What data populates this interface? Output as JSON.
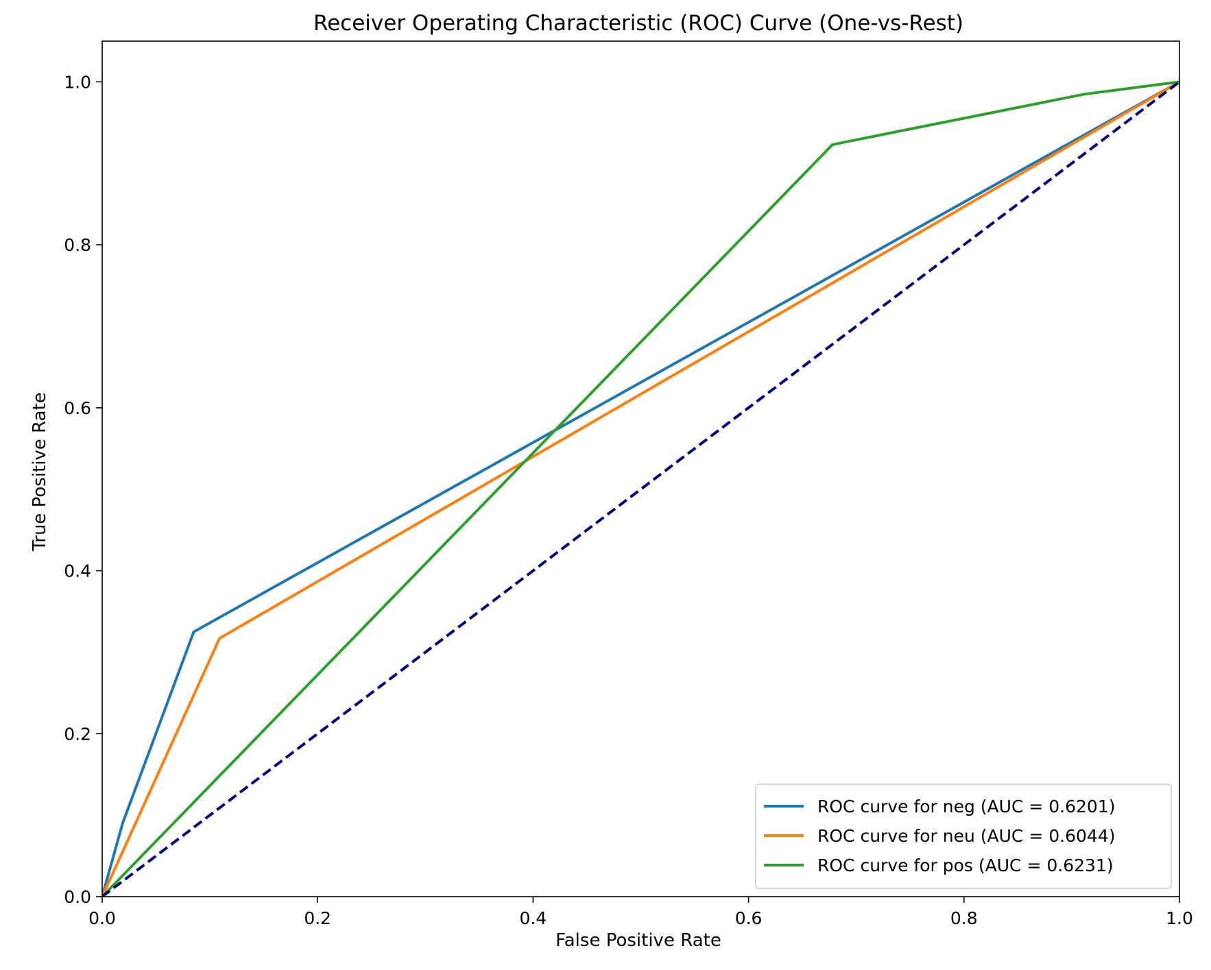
{
  "chart_data": {
    "type": "line",
    "title": "Receiver Operating Characteristic (ROC) Curve (One-vs-Rest)",
    "xlabel": "False Positive Rate",
    "ylabel": "True Positive Rate",
    "xlim": [
      0.0,
      1.0
    ],
    "ylim": [
      0.0,
      1.05
    ],
    "xticks": [
      0.0,
      0.2,
      0.4,
      0.6,
      0.8,
      1.0
    ],
    "yticks": [
      0.0,
      0.2,
      0.4,
      0.6,
      0.8,
      1.0
    ],
    "xtick_labels": [
      "0.0",
      "0.2",
      "0.4",
      "0.6",
      "0.8",
      "1.0"
    ],
    "ytick_labels": [
      "0.0",
      "0.2",
      "0.4",
      "0.6",
      "0.8",
      "1.0"
    ],
    "grid": false,
    "legend_position": "lower right",
    "series": [
      {
        "name": "ROC curve for neg (AUC = 0.6201)",
        "color": "#1f77b4",
        "x": [
          0.0,
          0.019,
          0.085,
          1.0
        ],
        "y": [
          0.0,
          0.09,
          0.325,
          1.0
        ]
      },
      {
        "name": "ROC curve for neu (AUC = 0.6044)",
        "color": "#ff7f0e",
        "x": [
          0.0,
          0.109,
          1.0
        ],
        "y": [
          0.0,
          0.317,
          1.0
        ]
      },
      {
        "name": "ROC curve for pos (AUC = 0.6231)",
        "color": "#2ca02c",
        "x": [
          0.0,
          0.678,
          0.912,
          1.0
        ],
        "y": [
          0.0,
          0.923,
          0.985,
          1.0
        ]
      }
    ],
    "reference_line": {
      "x": [
        0.0,
        1.0
      ],
      "y": [
        0.0,
        1.0
      ],
      "color": "#000080",
      "style": "dashed"
    }
  }
}
